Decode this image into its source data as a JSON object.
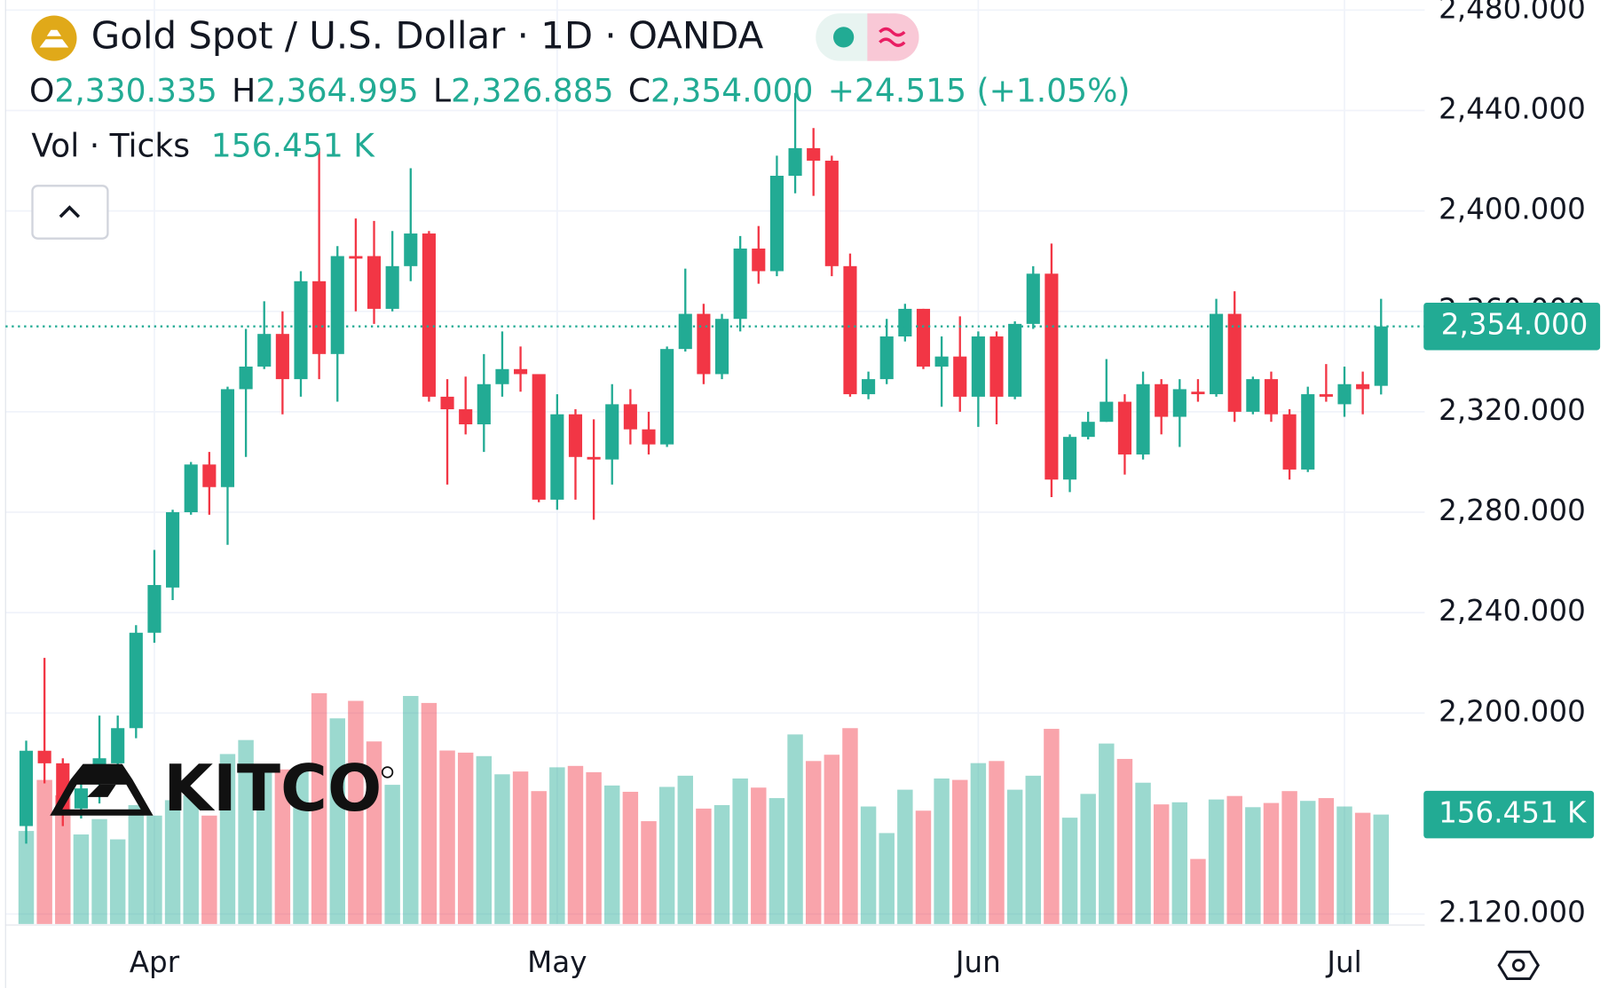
{
  "header": {
    "title": "Gold Spot / U.S. Dollar · 1D · OANDA",
    "volume_title": "Vol · Ticks",
    "watermark": "KITCO"
  },
  "chart_data": {
    "type": "candlestick",
    "categories": [
      null,
      null,
      null,
      null,
      null,
      null,
      null,
      "Apr",
      null,
      null,
      null,
      null,
      null,
      null,
      null,
      null,
      null,
      null,
      null,
      null,
      null,
      null,
      null,
      null,
      null,
      null,
      null,
      null,
      null,
      "May",
      null,
      null,
      null,
      null,
      null,
      null,
      null,
      null,
      null,
      null,
      null,
      null,
      null,
      null,
      null,
      null,
      null,
      null,
      null,
      null,
      null,
      null,
      "Jun",
      null,
      null,
      null,
      null,
      null,
      null,
      null,
      null,
      null,
      null,
      null,
      null,
      null,
      null,
      null,
      null,
      null,
      null,
      null,
      "Jul",
      null,
      null
    ],
    "open": [
      2155,
      2185,
      2180,
      2162,
      2172,
      2180,
      2194,
      2232,
      2250,
      2280,
      2299,
      2290,
      2329,
      2338,
      2351,
      2333,
      2372,
      2343,
      2382,
      2382,
      2361,
      2378,
      2391,
      2326,
      2321,
      2315,
      2331,
      2337,
      2335,
      2285,
      2319,
      2302,
      2301,
      2323,
      2313,
      2307,
      2345,
      2359,
      2335,
      2357,
      2385,
      2376,
      2414,
      2425,
      2420,
      2378,
      2327,
      2333,
      2350,
      2361,
      2338,
      2342,
      2326,
      2350,
      2326,
      2355,
      2375,
      2293,
      2310,
      2316,
      2324,
      2303,
      2331,
      2318,
      2328,
      2327,
      2359,
      2320,
      2333,
      2319,
      2297,
      2327,
      2323,
      2331,
      2330.335
    ],
    "high": [
      2189,
      2222,
      2182,
      2175,
      2199,
      2199,
      2235,
      2265,
      2281,
      2300,
      2304,
      2330,
      2353,
      2364,
      2360,
      2376,
      2425,
      2386,
      2397,
      2396,
      2392,
      2417,
      2392,
      2333,
      2334,
      2343,
      2352,
      2346,
      2335,
      2327,
      2321,
      2317,
      2331,
      2329,
      2320,
      2346,
      2377,
      2363,
      2359,
      2390,
      2394,
      2422,
      2447,
      2433,
      2422,
      2383,
      2336,
      2357,
      2363,
      2361,
      2350,
      2358,
      2352,
      2352,
      2356,
      2378,
      2387,
      2311,
      2320,
      2341,
      2327,
      2336,
      2333,
      2333,
      2333,
      2365,
      2368,
      2334,
      2336,
      2321,
      2330,
      2339,
      2338,
      2336,
      2364.995
    ],
    "low": [
      2148,
      2172,
      2155,
      2158,
      2164,
      2176,
      2190,
      2228,
      2245,
      2279,
      2279,
      2267,
      2302,
      2337,
      2319,
      2326,
      2333,
      2324,
      2360,
      2355,
      2360,
      2372,
      2324,
      2291,
      2311,
      2304,
      2326,
      2328,
      2284,
      2281,
      2285,
      2277,
      2291,
      2307,
      2303,
      2306,
      2344,
      2331,
      2333,
      2352,
      2371,
      2374,
      2407,
      2406,
      2374,
      2326,
      2325,
      2331,
      2348,
      2337,
      2322,
      2320,
      2314,
      2315,
      2325,
      2353,
      2286,
      2288,
      2309,
      2316,
      2295,
      2301,
      2311,
      2306,
      2324,
      2326,
      2316,
      2319,
      2316,
      2293,
      2296,
      2324,
      2318,
      2319,
      2326.885
    ],
    "close": [
      2185,
      2180,
      2160,
      2170,
      2182,
      2194,
      2232,
      2251,
      2280,
      2299,
      2290,
      2329,
      2338,
      2351,
      2333,
      2372,
      2343,
      2382,
      2381,
      2361,
      2378,
      2391,
      2326,
      2321,
      2315,
      2331,
      2337,
      2335,
      2285,
      2319,
      2302,
      2301,
      2323,
      2313,
      2307,
      2345,
      2359,
      2335,
      2357,
      2385,
      2376,
      2414,
      2425,
      2420,
      2378,
      2327,
      2333,
      2350,
      2361,
      2338,
      2342,
      2326,
      2350,
      2326,
      2355,
      2375,
      2293,
      2310,
      2316,
      2324,
      2303,
      2331,
      2318,
      2329,
      2327,
      2359,
      2320,
      2333,
      2319,
      2297,
      2327,
      2326,
      2331,
      2329,
      2354
    ],
    "volume": [
      133,
      206,
      184,
      128,
      150,
      121,
      170,
      155,
      177,
      184,
      155,
      243,
      263,
      221,
      221,
      221,
      330,
      294,
      319,
      261,
      199,
      326,
      316,
      248,
      245,
      240,
      214,
      218,
      190,
      224,
      226,
      217,
      198,
      189,
      147,
      196,
      212,
      165,
      170,
      208,
      195,
      180,
      271,
      233,
      242,
      280,
      168,
      130,
      192,
      162,
      208,
      206,
      230,
      233,
      192,
      212,
      279,
      152,
      186,
      258,
      236,
      202,
      171,
      174,
      93,
      178,
      183,
      167,
      173,
      190,
      176,
      180,
      168,
      159,
      156.451
    ],
    "ohlc_letters": {
      "open": "O",
      "high": "H",
      "low": "L",
      "close": "C"
    },
    "value_labels": {
      "open": "2,330.335",
      "high": "2,364.995",
      "low": "2,326.885",
      "close": "2,354.000",
      "volume": "156.451 K"
    },
    "change_label": "+24.515 (+1.05%)",
    "ylim": [
      2116,
      2484
    ],
    "yticks": [
      {
        "value": 2480,
        "label": "2,480.000"
      },
      {
        "value": 2440,
        "label": "2,440.000"
      },
      {
        "value": 2400,
        "label": "2,400.000"
      },
      {
        "value": 2360,
        "label": "2,360.000"
      },
      {
        "value": 2320,
        "label": "2,320.000"
      },
      {
        "value": 2280,
        "label": "2,280.000"
      },
      {
        "value": 2240,
        "label": "2,240.000"
      },
      {
        "value": 2200,
        "label": "2,200.000"
      },
      {
        "value": 2120,
        "label": "2.120.000"
      }
    ],
    "vlim": [
      0,
      400
    ],
    "up_color": "#22ab94",
    "down_color": "#f23645",
    "grid": true
  }
}
